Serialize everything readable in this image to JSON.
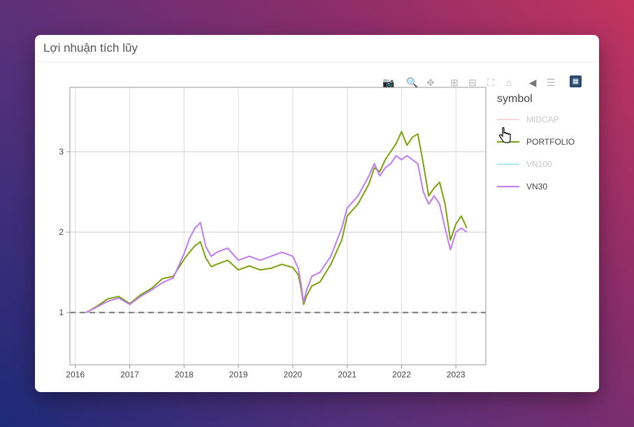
{
  "card": {
    "title": "Lợi nhuận tích lũy"
  },
  "modebar": {
    "buttons": [
      "camera-icon",
      "zoom-icon",
      "pan-icon",
      "zoom-in-icon",
      "zoom-out-icon",
      "autoscale-icon",
      "reset-axes-icon",
      "hover-closest-icon",
      "hover-compare-icon",
      "plotly-logo-icon"
    ]
  },
  "legend": {
    "title": "symbol",
    "items": [
      {
        "label": "MIDCAP",
        "color": "#f5b3b8",
        "visible": false
      },
      {
        "label": "PORTFOLIO",
        "color": "#7aa30b",
        "visible": true
      },
      {
        "label": "VN100",
        "color": "#6fdad8",
        "visible": false
      },
      {
        "label": "VN30",
        "color": "#c17af0",
        "visible": true
      }
    ]
  },
  "chart_data": {
    "type": "line",
    "title": "",
    "xlabel": "",
    "ylabel": "",
    "xlim": [
      2015.9,
      2023.55
    ],
    "ylim": [
      0.35,
      3.8
    ],
    "xticks": [
      2016,
      2017,
      2018,
      2019,
      2020,
      2021,
      2022,
      2023
    ],
    "xtick_labels": [
      "2016",
      "2017",
      "2018",
      "2019",
      "2020",
      "2021",
      "2022",
      "2023"
    ],
    "yticks": [
      1,
      2,
      3
    ],
    "ytick_labels": [
      "1",
      "2",
      "3"
    ],
    "grid": true,
    "reference_line": {
      "y": 1,
      "style": "dashed",
      "color": "#777777"
    },
    "series": [
      {
        "name": "PORTFOLIO",
        "color": "#7aa30b",
        "x": [
          2016.2,
          2016.4,
          2016.6,
          2016.8,
          2017.0,
          2017.2,
          2017.4,
          2017.6,
          2017.8,
          2018.0,
          2018.1,
          2018.2,
          2018.3,
          2018.4,
          2018.5,
          2018.6,
          2018.8,
          2019.0,
          2019.2,
          2019.4,
          2019.6,
          2019.8,
          2020.0,
          2020.1,
          2020.15,
          2020.2,
          2020.25,
          2020.35,
          2020.5,
          2020.7,
          2020.9,
          2021.0,
          2021.2,
          2021.4,
          2021.5,
          2021.6,
          2021.7,
          2021.8,
          2021.9,
          2022.0,
          2022.1,
          2022.2,
          2022.3,
          2022.4,
          2022.5,
          2022.6,
          2022.7,
          2022.8,
          2022.9,
          2023.0,
          2023.1,
          2023.2
        ],
        "values": [
          1.0,
          1.08,
          1.17,
          1.2,
          1.11,
          1.22,
          1.3,
          1.42,
          1.45,
          1.66,
          1.75,
          1.83,
          1.88,
          1.68,
          1.57,
          1.6,
          1.65,
          1.53,
          1.58,
          1.53,
          1.55,
          1.6,
          1.56,
          1.47,
          1.3,
          1.1,
          1.2,
          1.33,
          1.38,
          1.6,
          1.9,
          2.2,
          2.35,
          2.6,
          2.8,
          2.75,
          2.9,
          3.0,
          3.1,
          3.25,
          3.08,
          3.18,
          3.22,
          2.85,
          2.45,
          2.55,
          2.62,
          2.35,
          1.9,
          2.1,
          2.2,
          2.05
        ]
      },
      {
        "name": "VN30",
        "color": "#c17af0",
        "x": [
          2016.2,
          2016.4,
          2016.6,
          2016.8,
          2017.0,
          2017.2,
          2017.4,
          2017.6,
          2017.8,
          2018.0,
          2018.1,
          2018.2,
          2018.3,
          2018.4,
          2018.5,
          2018.6,
          2018.8,
          2019.0,
          2019.2,
          2019.4,
          2019.6,
          2019.8,
          2020.0,
          2020.1,
          2020.15,
          2020.2,
          2020.25,
          2020.35,
          2020.5,
          2020.7,
          2020.9,
          2021.0,
          2021.2,
          2021.4,
          2021.5,
          2021.6,
          2021.7,
          2021.8,
          2021.9,
          2022.0,
          2022.1,
          2022.2,
          2022.3,
          2022.4,
          2022.5,
          2022.6,
          2022.7,
          2022.8,
          2022.9,
          2023.0,
          2023.1,
          2023.2
        ],
        "values": [
          1.0,
          1.07,
          1.14,
          1.18,
          1.1,
          1.2,
          1.28,
          1.37,
          1.43,
          1.73,
          1.92,
          2.05,
          2.12,
          1.82,
          1.7,
          1.75,
          1.8,
          1.65,
          1.7,
          1.65,
          1.7,
          1.75,
          1.7,
          1.55,
          1.35,
          1.13,
          1.27,
          1.45,
          1.5,
          1.7,
          2.05,
          2.3,
          2.45,
          2.7,
          2.85,
          2.7,
          2.8,
          2.85,
          2.95,
          2.9,
          2.95,
          2.9,
          2.85,
          2.5,
          2.35,
          2.45,
          2.35,
          2.05,
          1.78,
          2.0,
          2.05,
          2.0
        ]
      }
    ]
  }
}
